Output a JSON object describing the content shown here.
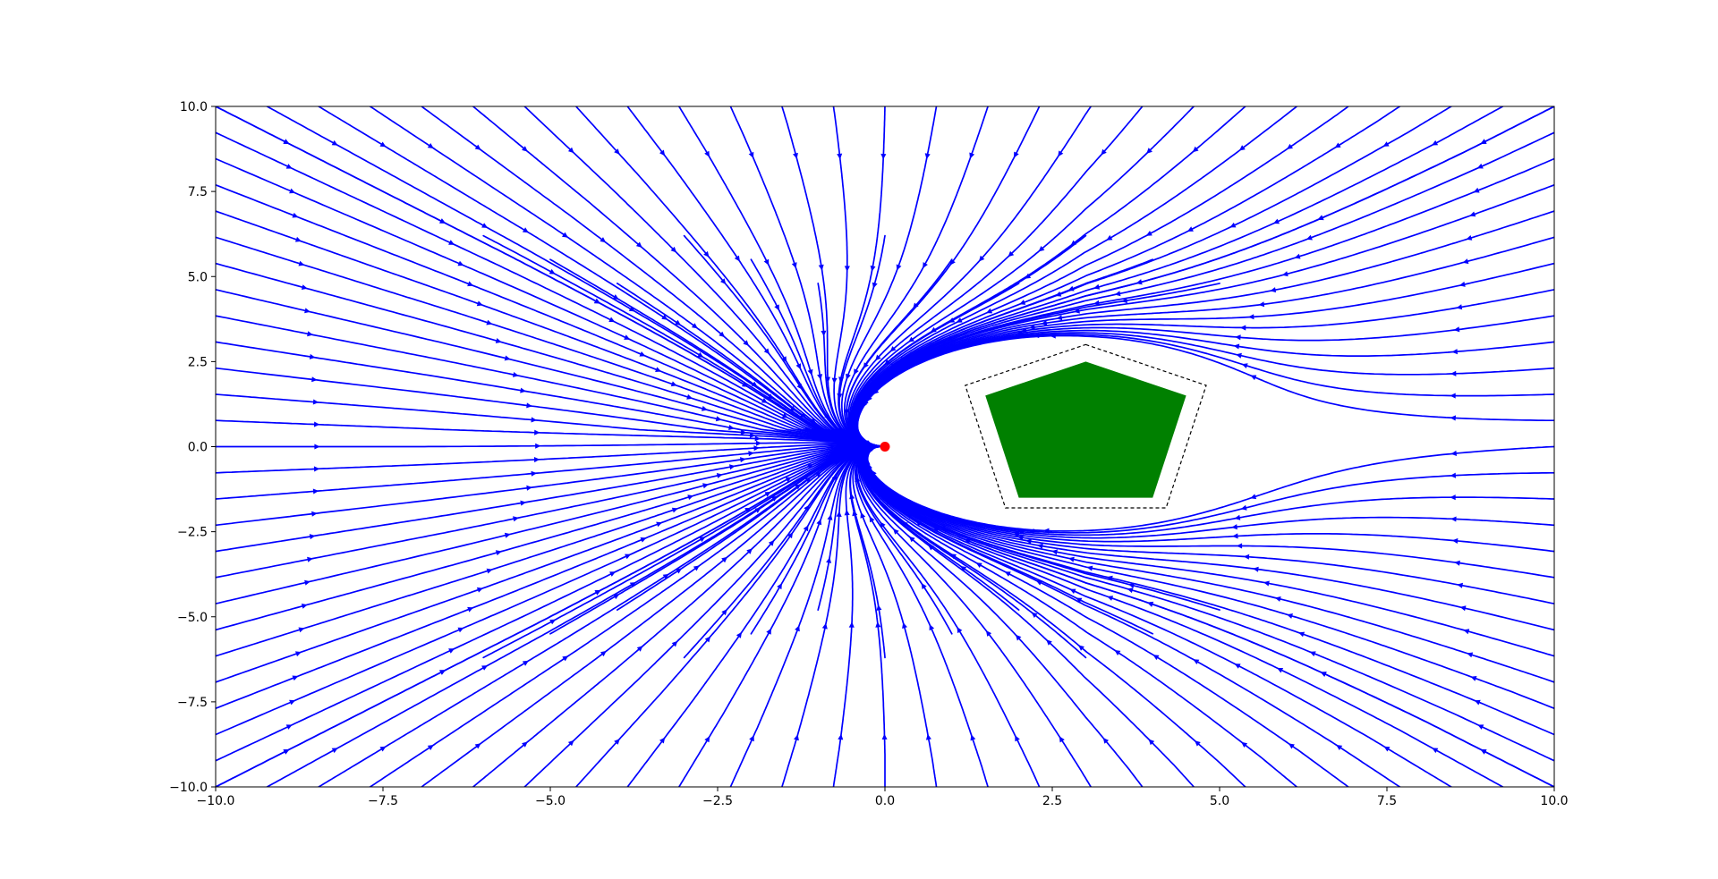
{
  "chart_data": {
    "type": "streamplot",
    "title": "",
    "xlabel": "",
    "ylabel": "",
    "xlim": [
      -10,
      10
    ],
    "ylim": [
      -10,
      10
    ],
    "x_ticks": [
      -10.0,
      -7.5,
      -5.0,
      -2.5,
      0.0,
      2.5,
      5.0,
      7.5,
      10.0
    ],
    "y_ticks": [
      -10.0,
      -7.5,
      -5.0,
      -2.5,
      0.0,
      2.5,
      5.0,
      7.5,
      10.0
    ],
    "x_tick_labels": [
      "−10.0",
      "−7.5",
      "−5.0",
      "−2.5",
      "0.0",
      "2.5",
      "5.0",
      "7.5",
      "10.0"
    ],
    "y_tick_labels": [
      "−10.0",
      "−7.5",
      "−5.0",
      "−2.5",
      "0.0",
      "2.5",
      "5.0",
      "7.5",
      "10.0"
    ],
    "grid": false,
    "stream_color": "#0000ff",
    "goal": {
      "x": 0.0,
      "y": 0.0,
      "color": "#ff0000"
    },
    "obstacle": {
      "color": "#008000",
      "vertices": [
        [
          3.0,
          2.5
        ],
        [
          4.5,
          1.5
        ],
        [
          4.0,
          -1.5
        ],
        [
          2.0,
          -1.5
        ],
        [
          1.5,
          1.5
        ]
      ],
      "boundary_style": "dashed",
      "boundary_color": "#000000",
      "boundary_vertices": [
        [
          3.0,
          3.0
        ],
        [
          4.8,
          1.8
        ],
        [
          4.2,
          -1.8
        ],
        [
          1.8,
          -1.8
        ],
        [
          1.2,
          1.8
        ]
      ]
    }
  }
}
